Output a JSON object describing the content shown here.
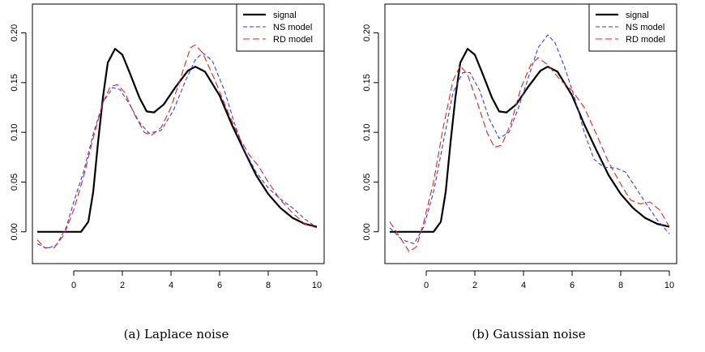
{
  "chart_data": [
    {
      "type": "line",
      "caption": "(a)  Laplace noise",
      "xlim": [
        -1.7,
        10.3
      ],
      "ylim": [
        -0.032,
        0.229
      ],
      "x_ticks": [
        0,
        2,
        4,
        6,
        8,
        10
      ],
      "y_ticks": [
        0.0,
        0.05,
        0.1,
        0.15,
        0.2
      ],
      "y_tick_labels": [
        "0.00",
        "0.05",
        "0.10",
        "0.15",
        "0.20"
      ],
      "legend": {
        "position": "top-right",
        "entries": [
          "signal",
          "NS model",
          "RD model"
        ]
      },
      "series": [
        {
          "name": "signal",
          "color": "#000000",
          "dash": "solid",
          "width": 2.2,
          "points": [
            [
              -1.5,
              0.0
            ],
            [
              0.3,
              0.0
            ],
            [
              0.6,
              0.01
            ],
            [
              0.8,
              0.04
            ],
            [
              1.0,
              0.09
            ],
            [
              1.2,
              0.135
            ],
            [
              1.4,
              0.17
            ],
            [
              1.7,
              0.184
            ],
            [
              2.0,
              0.178
            ],
            [
              2.3,
              0.16
            ],
            [
              2.7,
              0.135
            ],
            [
              3.0,
              0.121
            ],
            [
              3.3,
              0.12
            ],
            [
              3.7,
              0.128
            ],
            [
              4.2,
              0.146
            ],
            [
              4.7,
              0.162
            ],
            [
              5.0,
              0.166
            ],
            [
              5.4,
              0.161
            ],
            [
              6.0,
              0.137
            ],
            [
              6.5,
              0.108
            ],
            [
              7.0,
              0.082
            ],
            [
              7.5,
              0.057
            ],
            [
              8.0,
              0.038
            ],
            [
              8.5,
              0.024
            ],
            [
              9.0,
              0.014
            ],
            [
              9.5,
              0.008
            ],
            [
              10.0,
              0.005
            ]
          ]
        },
        {
          "name": "NS model",
          "color": "#3a3ae0",
          "dash": "5,3",
          "width": 1.1,
          "points": [
            [
              -1.5,
              -0.012
            ],
            [
              -1.1,
              -0.017
            ],
            [
              -0.7,
              -0.013
            ],
            [
              -0.3,
              0.005
            ],
            [
              0.0,
              0.03
            ],
            [
              0.4,
              0.06
            ],
            [
              0.8,
              0.098
            ],
            [
              1.2,
              0.13
            ],
            [
              1.6,
              0.145
            ],
            [
              1.9,
              0.143
            ],
            [
              2.3,
              0.128
            ],
            [
              2.7,
              0.11
            ],
            [
              3.1,
              0.099
            ],
            [
              3.6,
              0.102
            ],
            [
              4.1,
              0.122
            ],
            [
              4.6,
              0.152
            ],
            [
              5.0,
              0.173
            ],
            [
              5.3,
              0.18
            ],
            [
              5.7,
              0.172
            ],
            [
              6.2,
              0.142
            ],
            [
              6.6,
              0.11
            ],
            [
              7.0,
              0.083
            ],
            [
              7.5,
              0.06
            ],
            [
              8.0,
              0.044
            ],
            [
              8.5,
              0.033
            ],
            [
              9.0,
              0.024
            ],
            [
              9.5,
              0.013
            ],
            [
              10.0,
              0.004
            ]
          ]
        },
        {
          "name": "RD model",
          "color": "#e02020",
          "dash": "8,4",
          "width": 1.1,
          "points": [
            [
              -1.5,
              -0.008
            ],
            [
              -1.2,
              -0.016
            ],
            [
              -0.8,
              -0.016
            ],
            [
              -0.4,
              -0.003
            ],
            [
              0.0,
              0.022
            ],
            [
              0.4,
              0.055
            ],
            [
              0.8,
              0.094
            ],
            [
              1.2,
              0.13
            ],
            [
              1.5,
              0.146
            ],
            [
              1.8,
              0.148
            ],
            [
              2.1,
              0.14
            ],
            [
              2.5,
              0.118
            ],
            [
              2.9,
              0.1
            ],
            [
              3.2,
              0.097
            ],
            [
              3.6,
              0.105
            ],
            [
              4.0,
              0.125
            ],
            [
              4.4,
              0.155
            ],
            [
              4.8,
              0.185
            ],
            [
              5.0,
              0.188
            ],
            [
              5.3,
              0.18
            ],
            [
              5.8,
              0.153
            ],
            [
              6.3,
              0.123
            ],
            [
              6.8,
              0.095
            ],
            [
              7.2,
              0.078
            ],
            [
              7.6,
              0.066
            ],
            [
              8.0,
              0.05
            ],
            [
              8.5,
              0.032
            ],
            [
              9.0,
              0.019
            ],
            [
              9.5,
              0.008
            ],
            [
              10.0,
              0.004
            ]
          ]
        }
      ]
    },
    {
      "type": "line",
      "caption": "(b)  Gaussian noise",
      "xlim": [
        -1.7,
        10.3
      ],
      "ylim": [
        -0.032,
        0.229
      ],
      "x_ticks": [
        0,
        2,
        4,
        6,
        8,
        10
      ],
      "y_ticks": [
        0.0,
        0.05,
        0.1,
        0.15,
        0.2
      ],
      "y_tick_labels": [
        "0.00",
        "0.05",
        "0.10",
        "0.15",
        "0.20"
      ],
      "legend": {
        "position": "top-right",
        "entries": [
          "signal",
          "NS model",
          "RD model"
        ]
      },
      "series": [
        {
          "name": "signal",
          "color": "#000000",
          "dash": "solid",
          "width": 2.2,
          "points": [
            [
              -1.5,
              0.0
            ],
            [
              0.3,
              0.0
            ],
            [
              0.6,
              0.01
            ],
            [
              0.8,
              0.04
            ],
            [
              1.0,
              0.09
            ],
            [
              1.2,
              0.135
            ],
            [
              1.4,
              0.17
            ],
            [
              1.7,
              0.184
            ],
            [
              2.0,
              0.178
            ],
            [
              2.3,
              0.16
            ],
            [
              2.7,
              0.135
            ],
            [
              3.0,
              0.121
            ],
            [
              3.3,
              0.12
            ],
            [
              3.7,
              0.128
            ],
            [
              4.2,
              0.146
            ],
            [
              4.7,
              0.162
            ],
            [
              5.0,
              0.166
            ],
            [
              5.4,
              0.161
            ],
            [
              6.0,
              0.137
            ],
            [
              6.5,
              0.108
            ],
            [
              7.0,
              0.082
            ],
            [
              7.5,
              0.057
            ],
            [
              8.0,
              0.038
            ],
            [
              8.5,
              0.024
            ],
            [
              9.0,
              0.014
            ],
            [
              9.5,
              0.008
            ],
            [
              10.0,
              0.005
            ]
          ]
        },
        {
          "name": "NS model",
          "color": "#3a3ae0",
          "dash": "5,3",
          "width": 1.1,
          "points": [
            [
              -1.5,
              0.004
            ],
            [
              -1.0,
              -0.008
            ],
            [
              -0.5,
              -0.012
            ],
            [
              -0.1,
              0.005
            ],
            [
              0.3,
              0.04
            ],
            [
              0.7,
              0.09
            ],
            [
              1.1,
              0.14
            ],
            [
              1.5,
              0.16
            ],
            [
              1.8,
              0.16
            ],
            [
              2.2,
              0.142
            ],
            [
              2.6,
              0.113
            ],
            [
              3.0,
              0.094
            ],
            [
              3.4,
              0.1
            ],
            [
              3.8,
              0.125
            ],
            [
              4.2,
              0.155
            ],
            [
              4.6,
              0.185
            ],
            [
              5.0,
              0.198
            ],
            [
              5.3,
              0.19
            ],
            [
              5.7,
              0.165
            ],
            [
              6.1,
              0.135
            ],
            [
              6.5,
              0.1
            ],
            [
              6.9,
              0.073
            ],
            [
              7.3,
              0.065
            ],
            [
              7.8,
              0.064
            ],
            [
              8.2,
              0.06
            ],
            [
              8.6,
              0.045
            ],
            [
              9.0,
              0.03
            ],
            [
              9.5,
              0.012
            ],
            [
              10.0,
              -0.002
            ]
          ]
        },
        {
          "name": "RD model",
          "color": "#e02020",
          "dash": "8,4",
          "width": 1.1,
          "points": [
            [
              -1.5,
              0.01
            ],
            [
              -1.1,
              -0.005
            ],
            [
              -0.7,
              -0.02
            ],
            [
              -0.4,
              -0.015
            ],
            [
              -0.1,
              0.01
            ],
            [
              0.3,
              0.05
            ],
            [
              0.7,
              0.105
            ],
            [
              1.1,
              0.152
            ],
            [
              1.4,
              0.167
            ],
            [
              1.7,
              0.158
            ],
            [
              2.1,
              0.13
            ],
            [
              2.5,
              0.1
            ],
            [
              2.8,
              0.085
            ],
            [
              3.1,
              0.087
            ],
            [
              3.5,
              0.11
            ],
            [
              3.9,
              0.145
            ],
            [
              4.3,
              0.168
            ],
            [
              4.6,
              0.175
            ],
            [
              5.0,
              0.168
            ],
            [
              5.5,
              0.153
            ],
            [
              6.0,
              0.142
            ],
            [
              6.5,
              0.125
            ],
            [
              7.0,
              0.098
            ],
            [
              7.5,
              0.07
            ],
            [
              8.0,
              0.048
            ],
            [
              8.4,
              0.032
            ],
            [
              8.8,
              0.028
            ],
            [
              9.2,
              0.03
            ],
            [
              9.6,
              0.022
            ],
            [
              10.0,
              0.005
            ]
          ]
        }
      ]
    }
  ]
}
